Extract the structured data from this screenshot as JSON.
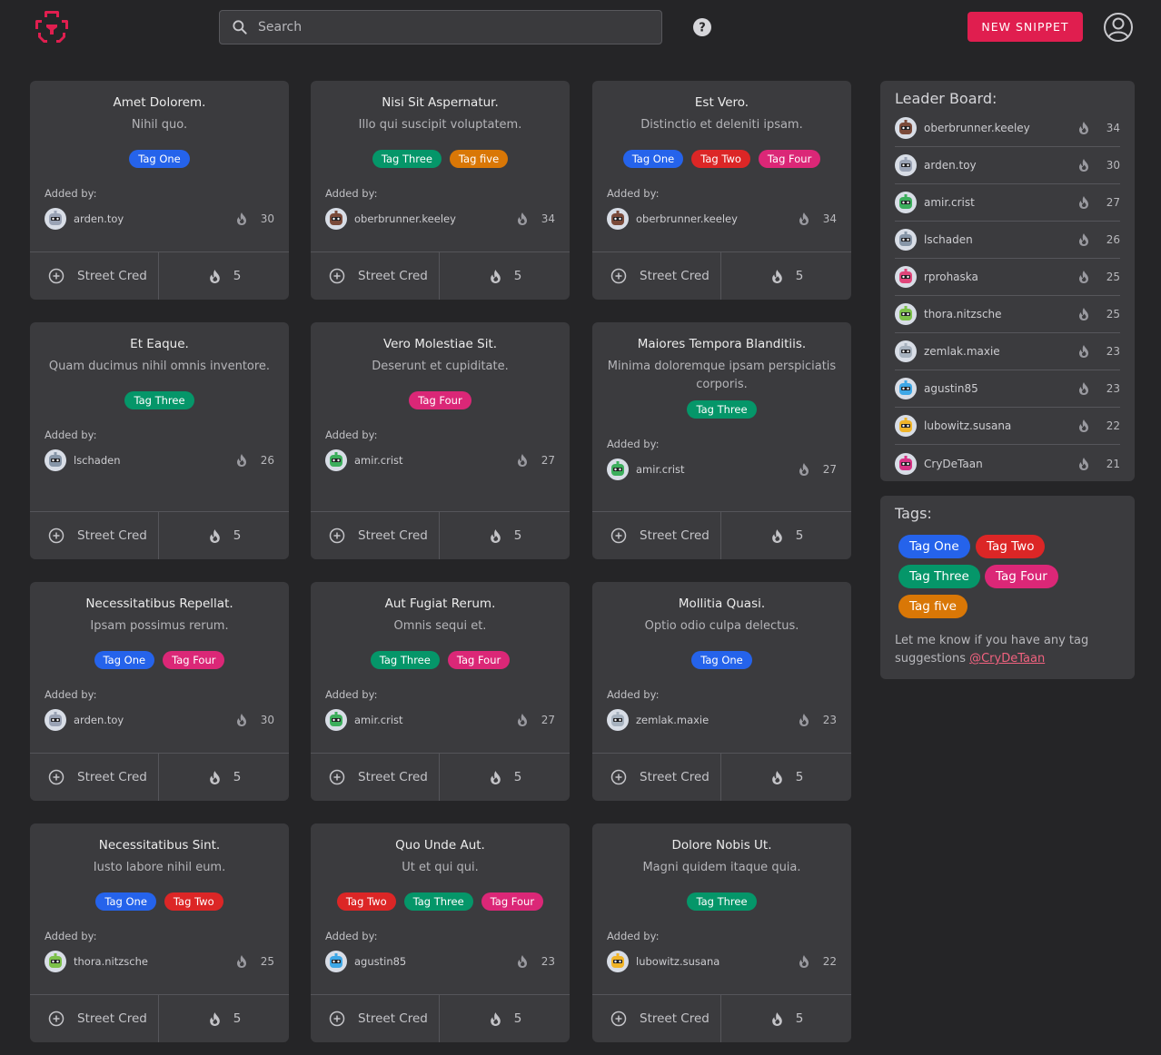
{
  "header": {
    "search_placeholder": "Search",
    "new_snippet_label": "NEW SNIPPET",
    "brand_color": "#e01e4f"
  },
  "tag_colors": {
    "Tag One": "#2563eb",
    "Tag Two": "#dc2626",
    "Tag Three": "#059669",
    "Tag Four": "#db2777",
    "Tag five": "#d97706"
  },
  "card_labels": {
    "added_by": "Added by:",
    "street_cred": "Street Cred"
  },
  "cards": [
    {
      "title": "Amet Dolorem.",
      "desc": "Nihil quo.",
      "tags": [
        "Tag One"
      ],
      "user": "arden.toy",
      "points": "30",
      "cred": "5"
    },
    {
      "title": "Nisi Sit Aspernatur.",
      "desc": "Illo qui suscipit voluptatem.",
      "tags": [
        "Tag Three",
        "Tag five"
      ],
      "user": "oberbrunner.keeley",
      "points": "34",
      "cred": "5"
    },
    {
      "title": "Est Vero.",
      "desc": "Distinctio et deleniti ipsam.",
      "tags": [
        "Tag One",
        "Tag Two",
        "Tag Four"
      ],
      "user": "oberbrunner.keeley",
      "points": "34",
      "cred": "5"
    },
    {
      "title": "Et Eaque.",
      "desc": "Quam ducimus nihil omnis inventore.",
      "tags": [
        "Tag Three"
      ],
      "user": "lschaden",
      "points": "26",
      "cred": "5"
    },
    {
      "title": "Vero Molestiae Sit.",
      "desc": "Deserunt et cupiditate.",
      "tags": [
        "Tag Four"
      ],
      "user": "amir.crist",
      "points": "27",
      "cred": "5"
    },
    {
      "title": "Maiores Tempora Blanditiis.",
      "desc": "Minima doloremque ipsam perspiciatis corporis.",
      "tags": [
        "Tag Three"
      ],
      "user": "amir.crist",
      "points": "27",
      "cred": "5"
    },
    {
      "title": "Necessitatibus Repellat.",
      "desc": "Ipsam possimus rerum.",
      "tags": [
        "Tag One",
        "Tag Four"
      ],
      "user": "arden.toy",
      "points": "30",
      "cred": "5"
    },
    {
      "title": "Aut Fugiat Rerum.",
      "desc": "Omnis sequi et.",
      "tags": [
        "Tag Three",
        "Tag Four"
      ],
      "user": "amir.crist",
      "points": "27",
      "cred": "5"
    },
    {
      "title": "Mollitia Quasi.",
      "desc": "Optio odio culpa delectus.",
      "tags": [
        "Tag One"
      ],
      "user": "zemlak.maxie",
      "points": "23",
      "cred": "5"
    },
    {
      "title": "Necessitatibus Sint.",
      "desc": "Iusto labore nihil eum.",
      "tags": [
        "Tag One",
        "Tag Two"
      ],
      "user": "thora.nitzsche",
      "points": "25",
      "cred": "5"
    },
    {
      "title": "Quo Unde Aut.",
      "desc": "Ut et qui qui.",
      "tags": [
        "Tag Two",
        "Tag Three",
        "Tag Four"
      ],
      "user": "agustin85",
      "points": "23",
      "cred": "5"
    },
    {
      "title": "Dolore Nobis Ut.",
      "desc": "Magni quidem itaque quia.",
      "tags": [
        "Tag Three"
      ],
      "user": "lubowitz.susana",
      "points": "22",
      "cred": "5"
    }
  ],
  "leaderboard": {
    "title": "Leader Board:",
    "entries": [
      {
        "user": "oberbrunner.keeley",
        "points": "34"
      },
      {
        "user": "arden.toy",
        "points": "30"
      },
      {
        "user": "amir.crist",
        "points": "27"
      },
      {
        "user": "lschaden",
        "points": "26"
      },
      {
        "user": "rprohaska",
        "points": "25"
      },
      {
        "user": "thora.nitzsche",
        "points": "25"
      },
      {
        "user": "zemlak.maxie",
        "points": "23"
      },
      {
        "user": "agustin85",
        "points": "23"
      },
      {
        "user": "lubowitz.susana",
        "points": "22"
      },
      {
        "user": "CryDeTaan",
        "points": "21"
      }
    ]
  },
  "tags_panel": {
    "title": "Tags:",
    "tags": [
      "Tag One",
      "Tag Two",
      "Tag Three",
      "Tag Four",
      "Tag five"
    ],
    "suggestion_text": "Let me know if you have any tag suggestions",
    "suggestion_link": "@CryDeTaan"
  },
  "avatar_colors": {
    "oberbrunner.keeley": "#7a4a3a",
    "arden.toy": "#9aa3b5",
    "amir.crist": "#3cae5c",
    "lschaden": "#8796a8",
    "rprohaska": "#e0457a",
    "thora.nitzsche": "#7cc04a",
    "zemlak.maxie": "#a7b2bf",
    "agustin85": "#3ea7e6",
    "lubowitz.susana": "#f0b429",
    "CryDeTaan": "#d63384"
  }
}
